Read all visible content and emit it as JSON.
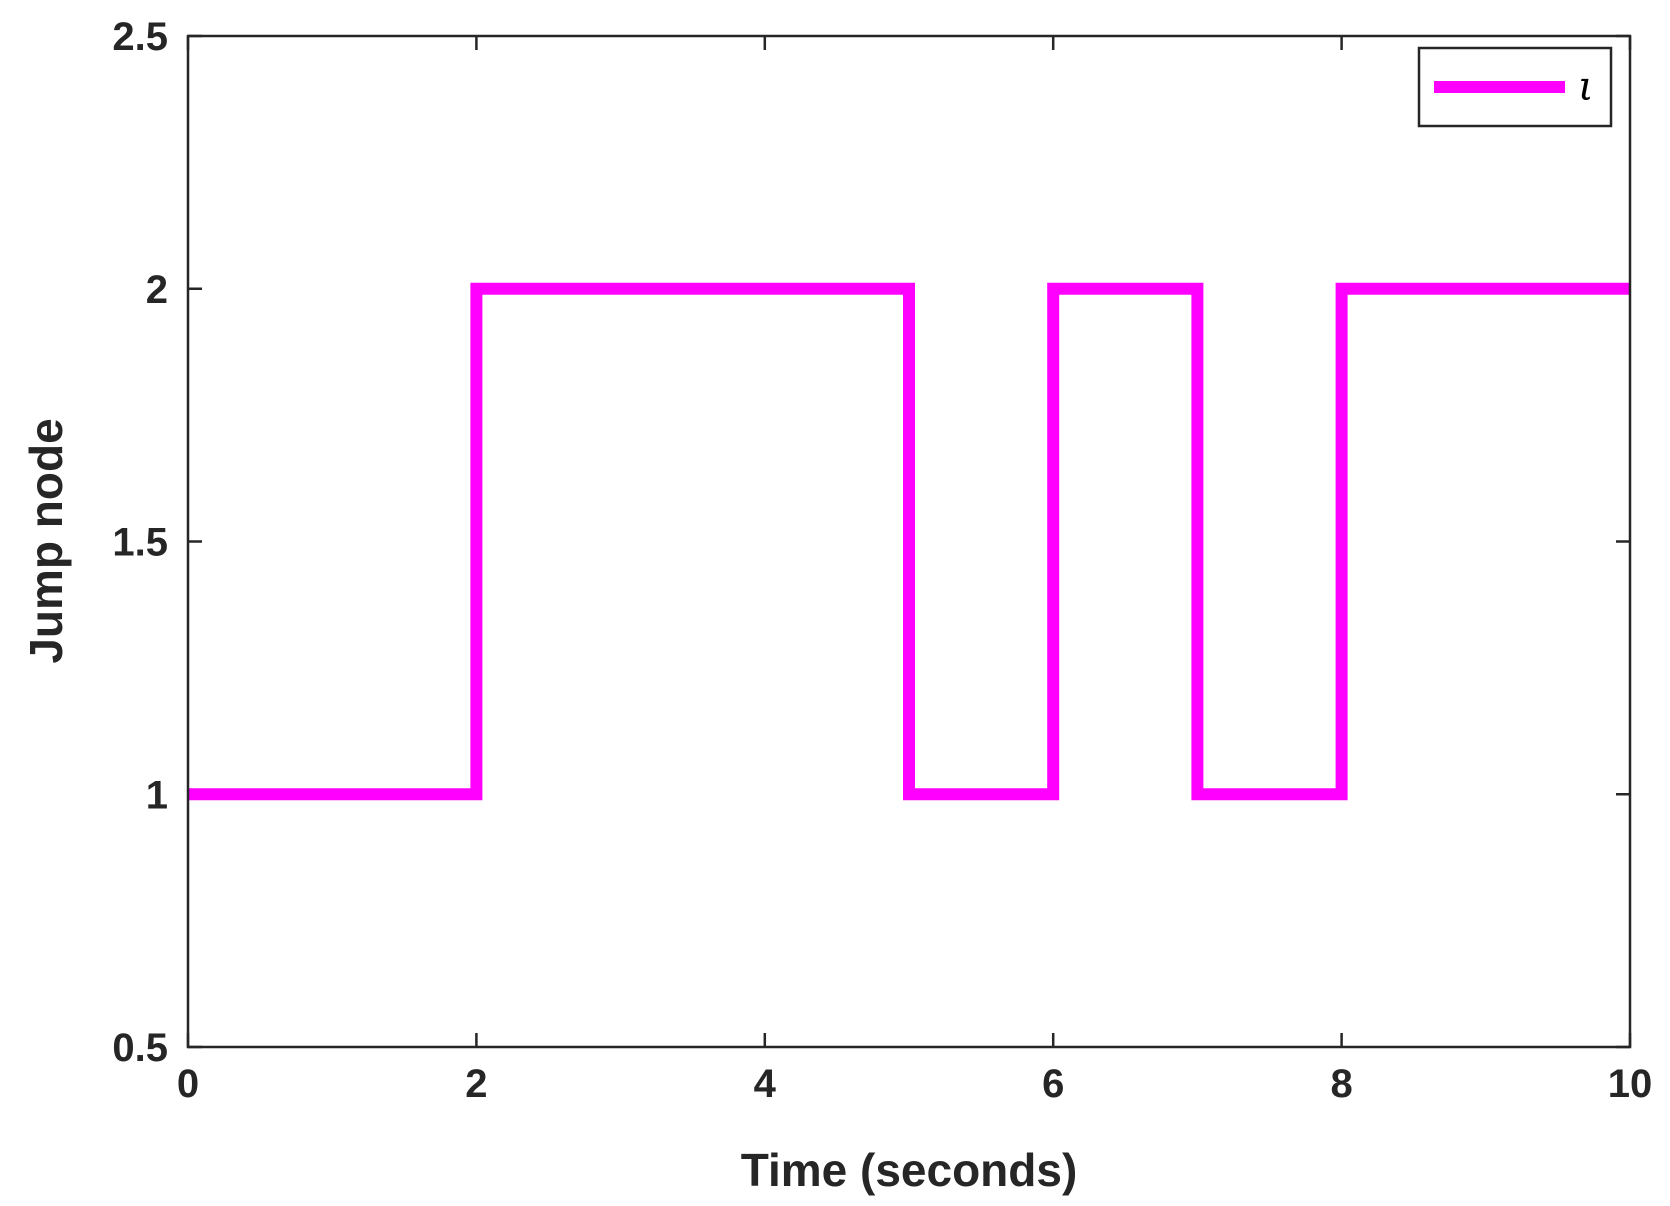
{
  "chart_data": {
    "type": "line",
    "step": true,
    "xlabel": "Time (seconds)",
    "ylabel": "Jump node",
    "xlim": [
      0,
      10
    ],
    "ylim": [
      0.5,
      2.5
    ],
    "xticks": [
      0,
      2,
      4,
      6,
      8,
      10
    ],
    "yticks": [
      0.5,
      1,
      1.5,
      2,
      2.5
    ],
    "xtick_labels": [
      "0",
      "2",
      "4",
      "6",
      "8",
      "10"
    ],
    "ytick_labels": [
      "0.5",
      "1",
      "1.5",
      "2",
      "2.5"
    ],
    "grid": false,
    "legend_position": "top-right",
    "series": [
      {
        "name": "ι",
        "color": "#ff00ff",
        "x": [
          0,
          2,
          2,
          5,
          5,
          6,
          6,
          7,
          7,
          8,
          8,
          10
        ],
        "y": [
          1,
          1,
          2,
          2,
          1,
          1,
          2,
          2,
          1,
          1,
          2,
          2
        ]
      }
    ]
  }
}
